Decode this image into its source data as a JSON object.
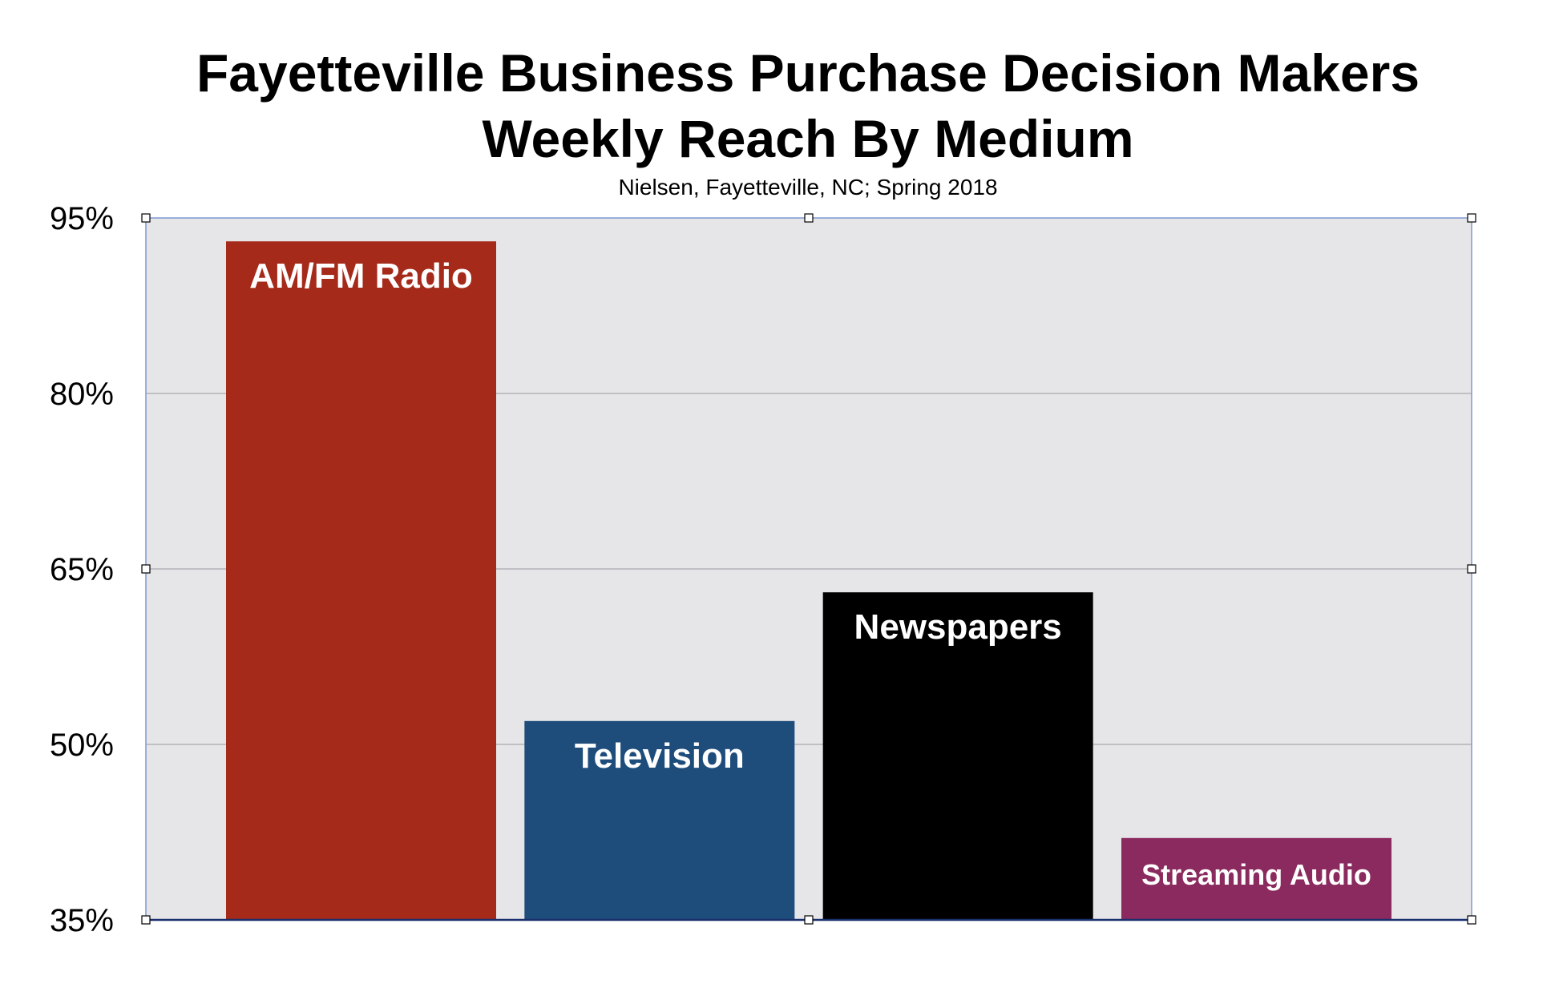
{
  "chart_data": {
    "type": "bar",
    "title": "Fayetteville Business Purchase Decision Makers",
    "title_line2": "Weekly Reach By Medium",
    "subtitle": "Nielsen, Fayetteville, NC; Spring 2018",
    "xlabel": "",
    "ylabel": "",
    "ylim": [
      35,
      95
    ],
    "yticks": [
      35,
      50,
      65,
      80,
      95
    ],
    "ytick_labels": [
      "35%",
      "50%",
      "65%",
      "80%",
      "95%"
    ],
    "grid": true,
    "legend": "none",
    "categories": [
      "AM/FM Radio",
      "Television",
      "Newspapers",
      "Streaming Audio"
    ],
    "values": [
      93,
      52,
      63,
      42
    ],
    "colors": [
      "#a52a1a",
      "#1e4c7b",
      "#000000",
      "#8b2a5e"
    ],
    "plot_background": "#e6e6e9"
  }
}
